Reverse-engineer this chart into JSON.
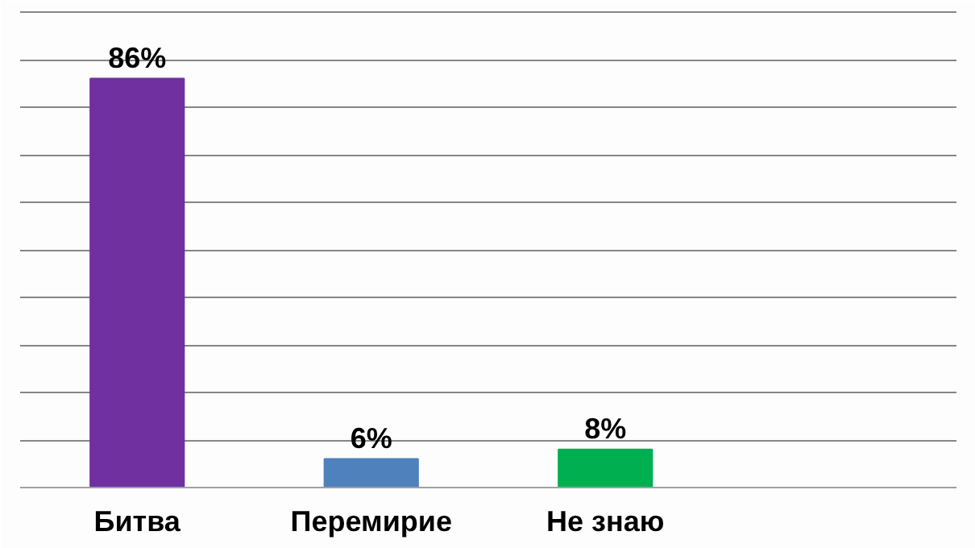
{
  "chart_data": {
    "type": "bar",
    "categories": [
      "Битва",
      "Перемирие",
      "Не знаю",
      null
    ],
    "values": [
      86,
      6,
      8,
      null
    ],
    "colors": [
      "#7030a0",
      "#4f81bd",
      "#00b050",
      "#000000"
    ],
    "value_labels": [
      "86%",
      "6%",
      "8%",
      null
    ],
    "ylim": [
      0,
      100
    ],
    "yticks": [
      {
        "value": 0,
        "label": null
      },
      {
        "value": 10,
        "label": null
      },
      {
        "value": 20,
        "label": null
      },
      {
        "value": 30,
        "label": null
      },
      {
        "value": 40,
        "label": null
      },
      {
        "value": 50,
        "label": null
      },
      {
        "value": 60,
        "label": null
      },
      {
        "value": 70,
        "label": null
      },
      {
        "value": 80,
        "label": null
      },
      {
        "value": 90,
        "label": null
      },
      {
        "value": 100,
        "label": null
      }
    ],
    "grid": "y",
    "tick_labels": "x"
  }
}
